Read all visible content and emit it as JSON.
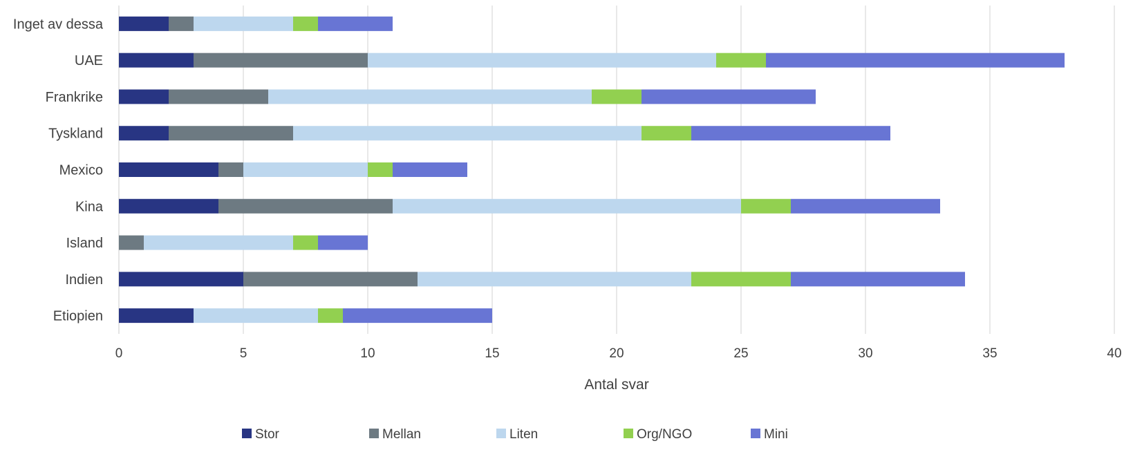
{
  "chart_data": {
    "type": "bar",
    "orientation": "horizontal",
    "stacked": true,
    "categories": [
      "Inget av dessa",
      "UAE",
      "Frankrike",
      "Tyskland",
      "Mexico",
      "Kina",
      "Island",
      "Indien",
      "Etiopien"
    ],
    "series": [
      {
        "name": "Stor",
        "color": "#283583",
        "values": [
          2,
          3,
          2,
          2,
          4,
          4,
          0,
          5,
          3
        ]
      },
      {
        "name": "Mellan",
        "color": "#6d7a82",
        "values": [
          1,
          7,
          4,
          5,
          1,
          7,
          1,
          7,
          0
        ]
      },
      {
        "name": "Liten",
        "color": "#bdd7ee",
        "values": [
          4,
          14,
          13,
          14,
          5,
          14,
          6,
          11,
          5
        ]
      },
      {
        "name": "Org/NGO",
        "color": "#92d050",
        "values": [
          1,
          2,
          2,
          2,
          1,
          2,
          1,
          4,
          1
        ]
      },
      {
        "name": "Mini",
        "color": "#6875d4",
        "values": [
          3,
          12,
          7,
          8,
          3,
          6,
          2,
          7,
          6
        ]
      }
    ],
    "xlabel": "Antal svar",
    "xlim": [
      0,
      40
    ],
    "xticks": [
      "0",
      "5",
      "10",
      "15",
      "20",
      "25",
      "30",
      "35",
      "40"
    ],
    "grid": "vertical",
    "gridColor": "#d9d9d9",
    "legend": "bottom"
  }
}
